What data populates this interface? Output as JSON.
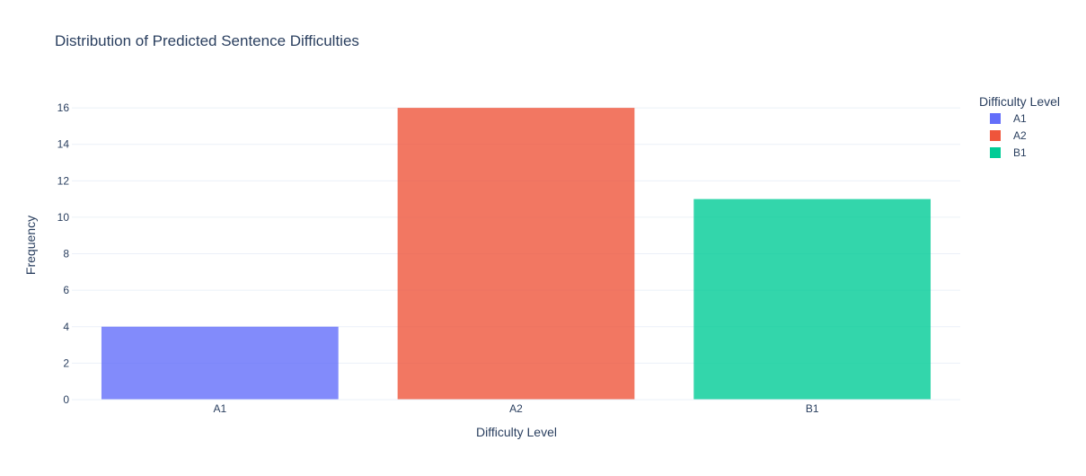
{
  "chart_data": {
    "type": "bar",
    "title": "Distribution of Predicted Sentence Difficulties",
    "xlabel": "Difficulty Level",
    "ylabel": "Frequency",
    "categories": [
      "A1",
      "A2",
      "B1"
    ],
    "values": [
      4,
      16,
      11
    ],
    "ylim": [
      0,
      16.842
    ],
    "yticks": [
      0,
      2,
      4,
      6,
      8,
      10,
      12,
      14,
      16
    ],
    "grid": true,
    "legend": {
      "title": "Difficulty Level",
      "position": "top-right",
      "entries": [
        "A1",
        "A2",
        "B1"
      ]
    },
    "colors": {
      "A1": "#636efa",
      "A2": "#ef553b",
      "B1": "#00cc96"
    }
  }
}
